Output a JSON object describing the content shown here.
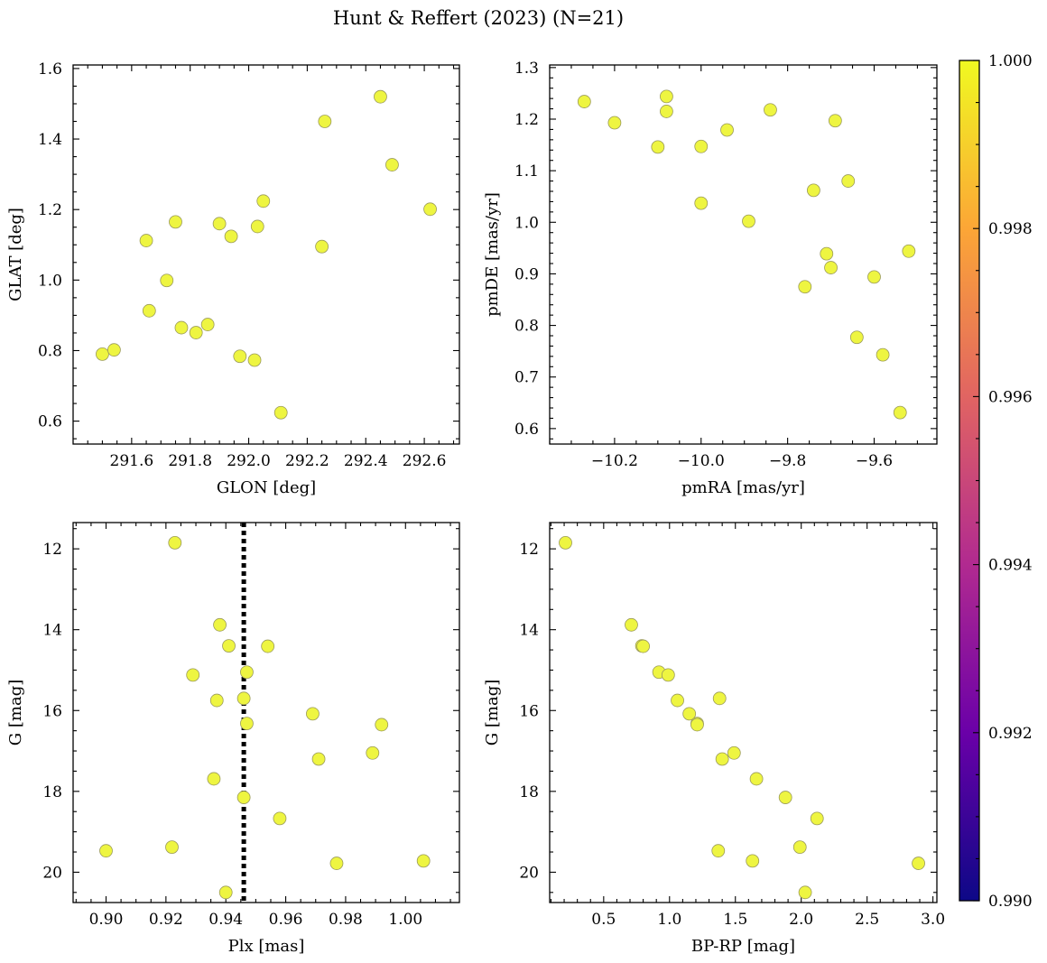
{
  "chart_data": {
    "title": "Hunt & Reffert (2023) (N=21)",
    "point_color": "#eef541",
    "colorbar": {
      "range": [
        0.99,
        1.0
      ],
      "ticks": [
        "0.990",
        "0.992",
        "0.994",
        "0.996",
        "0.998",
        "1.000"
      ],
      "colormap": [
        "#0d0887",
        "#6a00a8",
        "#b12a90",
        "#e16462",
        "#fca636",
        "#f0f921"
      ]
    },
    "panels": [
      {
        "id": "glon-glat",
        "type": "scatter",
        "xlabel": "GLON [deg]",
        "ylabel": "GLAT [deg]",
        "xlim": [
          291.4,
          292.72
        ],
        "ylim": [
          0.535,
          1.61
        ],
        "xticks": [
          "291.6",
          "291.8",
          "292.0",
          "292.2",
          "292.4",
          "292.6"
        ],
        "yticks": [
          "0.6",
          "0.8",
          "1.0",
          "1.2",
          "1.4",
          "1.6"
        ],
        "x": [
          291.5,
          291.54,
          291.65,
          291.66,
          291.72,
          291.75,
          291.77,
          291.82,
          291.86,
          291.9,
          291.94,
          291.97,
          292.02,
          292.03,
          292.05,
          292.11,
          292.25,
          292.26,
          292.45,
          292.49,
          292.62
        ],
        "y": [
          0.79,
          0.802,
          1.112,
          0.913,
          0.999,
          1.165,
          0.865,
          0.851,
          0.874,
          1.16,
          1.124,
          0.784,
          0.773,
          1.152,
          1.224,
          0.624,
          1.095,
          1.45,
          1.52,
          1.327,
          1.201
        ]
      },
      {
        "id": "pm",
        "type": "scatter",
        "xlabel": "pmRA [mas/yr]",
        "ylabel": "pmDE [mas/yr]",
        "xlim": [
          -10.35,
          -9.455
        ],
        "ylim": [
          0.57,
          1.305
        ],
        "xticks": [
          "−10.2",
          "−10.0",
          "−9.8",
          "−9.6"
        ],
        "yticks": [
          "0.6",
          "0.7",
          "0.8",
          "0.9",
          "1.0",
          "1.1",
          "1.2",
          "1.3"
        ],
        "x": [
          -10.27,
          -10.2,
          -10.1,
          -10.08,
          -10.08,
          -10.0,
          -10.0,
          -9.94,
          -9.89,
          -9.84,
          -9.76,
          -9.74,
          -9.71,
          -9.7,
          -9.69,
          -9.66,
          -9.64,
          -9.6,
          -9.58,
          -9.54,
          -9.52
        ],
        "y": [
          1.234,
          1.193,
          1.146,
          1.244,
          1.215,
          1.147,
          1.037,
          1.179,
          1.002,
          1.218,
          0.875,
          1.062,
          0.939,
          0.912,
          1.197,
          1.08,
          0.777,
          0.894,
          0.743,
          0.631,
          0.944
        ]
      },
      {
        "id": "plx-g",
        "type": "scatter",
        "xlabel": "Plx [mas]",
        "ylabel": "G [mag]",
        "xlim": [
          0.889,
          1.018
        ],
        "ylim": [
          20.75,
          11.35
        ],
        "inverted_y": true,
        "vline": 0.946,
        "xticks": [
          "0.90",
          "0.92",
          "0.94",
          "0.96",
          "0.98",
          "1.00"
        ],
        "yticks": [
          "12",
          "14",
          "16",
          "18",
          "20"
        ],
        "x": [
          0.9,
          0.922,
          0.923,
          0.929,
          0.936,
          0.937,
          0.938,
          0.94,
          0.941,
          0.946,
          0.946,
          0.947,
          0.947,
          0.954,
          0.958,
          0.969,
          0.971,
          0.977,
          0.989,
          0.992,
          1.006
        ],
        "y": [
          19.47,
          19.38,
          11.85,
          15.12,
          17.69,
          15.75,
          13.88,
          20.5,
          14.4,
          15.7,
          18.15,
          15.05,
          16.32,
          14.41,
          18.67,
          16.08,
          17.2,
          19.78,
          17.05,
          16.35,
          19.72
        ]
      },
      {
        "id": "cmd",
        "type": "scatter",
        "xlabel": "BP-RP [mag]",
        "ylabel": "G [mag]",
        "xlim": [
          0.09,
          3.03
        ],
        "ylim": [
          20.75,
          11.35
        ],
        "inverted_y": true,
        "xticks": [
          "0.5",
          "1.0",
          "1.5",
          "2.0",
          "2.5",
          "3.0"
        ],
        "yticks": [
          "12",
          "14",
          "16",
          "18",
          "20"
        ],
        "x": [
          0.21,
          0.71,
          0.79,
          0.8,
          0.92,
          0.99,
          1.06,
          1.15,
          1.21,
          1.21,
          1.37,
          1.38,
          1.4,
          1.49,
          1.63,
          1.66,
          1.88,
          1.99,
          2.03,
          2.12,
          2.89
        ],
        "y": [
          11.85,
          13.88,
          14.4,
          14.41,
          15.05,
          15.12,
          15.75,
          16.08,
          16.32,
          16.35,
          19.47,
          15.7,
          17.2,
          17.05,
          19.72,
          17.69,
          18.15,
          19.38,
          20.5,
          18.67,
          19.78
        ]
      }
    ]
  }
}
